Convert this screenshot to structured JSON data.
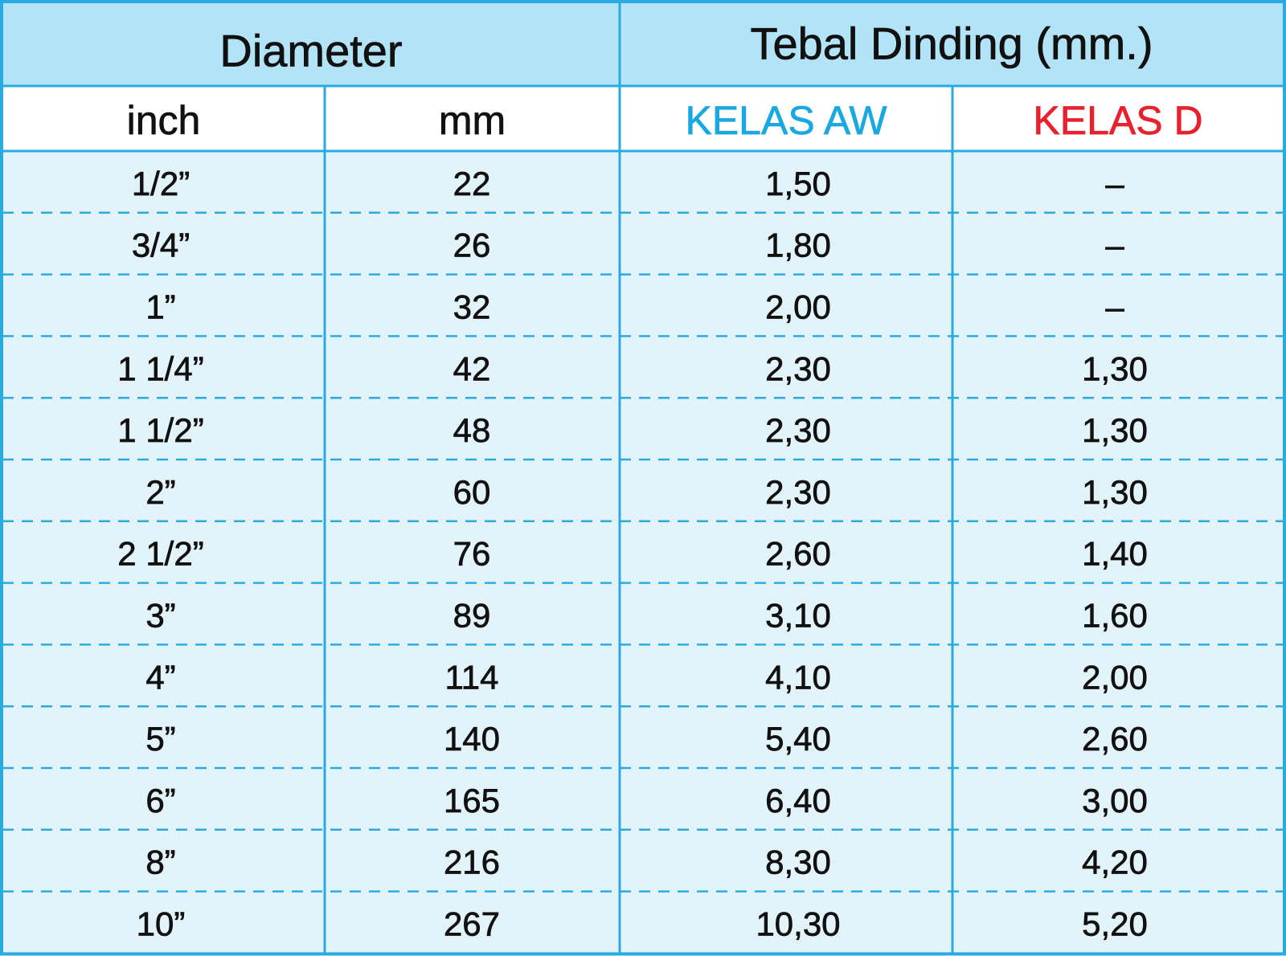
{
  "table": {
    "header": [
      "Diameter",
      "Tebal Dinding (mm.)"
    ],
    "subheader": [
      "inch",
      "mm",
      "KELAS AW",
      "KELAS D"
    ],
    "rows": [
      [
        "1/2”",
        "22",
        "1,50",
        "–"
      ],
      [
        "3/4”",
        "26",
        "1,80",
        "–"
      ],
      [
        "1”",
        "32",
        "2,00",
        "–"
      ],
      [
        "1 1/4”",
        "42",
        "2,30",
        "1,30"
      ],
      [
        "1 1/2”",
        "48",
        "2,30",
        "1,30"
      ],
      [
        "2”",
        "60",
        "2,30",
        "1,30"
      ],
      [
        "2 1/2”",
        "76",
        "2,60",
        "1,40"
      ],
      [
        "3”",
        "89",
        "3,10",
        "1,60"
      ],
      [
        "4”",
        "114",
        "4,10",
        "2,00"
      ],
      [
        "5”",
        "140",
        "5,40",
        "2,60"
      ],
      [
        "6”",
        "165",
        "6,40",
        "3,00"
      ],
      [
        "8”",
        "216",
        "8,30",
        "4,20"
      ],
      [
        "10”",
        "267",
        "10,30",
        "5,20"
      ]
    ]
  }
}
